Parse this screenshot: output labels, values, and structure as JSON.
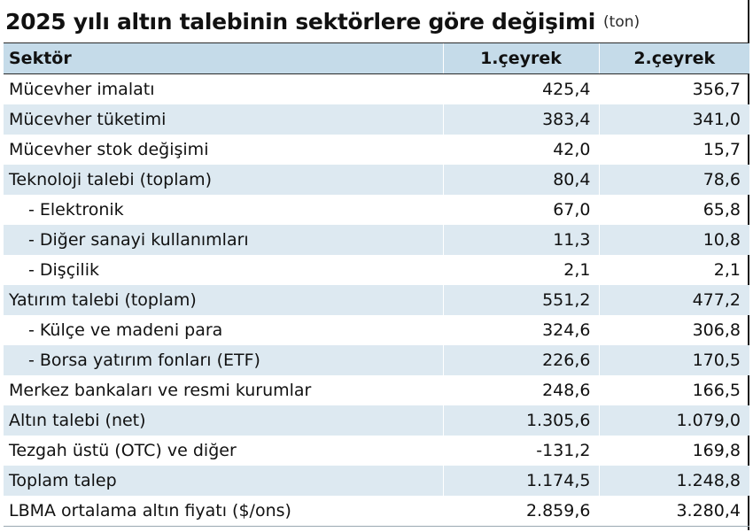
{
  "title": {
    "main": "2025 yılı altın talebinin sektörlere göre değişimi",
    "unit": "(ton)"
  },
  "table": {
    "columns": [
      "Sektör",
      "1.çeyrek",
      "2.çeyrek"
    ],
    "rows": [
      {
        "sector": "Mücevher imalatı",
        "q1": "425,4",
        "q2": "356,7"
      },
      {
        "sector": "Mücevher tüketimi",
        "q1": "383,4",
        "q2": "341,0"
      },
      {
        "sector": "Mücevher stok değişimi",
        "q1": "42,0",
        "q2": "15,7"
      },
      {
        "sector": "Teknoloji talebi (toplam)",
        "q1": "80,4",
        "q2": "78,6"
      },
      {
        "sector": "- Elektronik",
        "q1": "67,0",
        "q2": "65,8"
      },
      {
        "sector": "- Diğer sanayi kullanımları",
        "q1": "11,3",
        "q2": "10,8"
      },
      {
        "sector": "- Dişçilik",
        "q1": "2,1",
        "q2": "2,1"
      },
      {
        "sector": "Yatırım talebi (toplam)",
        "q1": "551,2",
        "q2": "477,2"
      },
      {
        "sector": "- Külçe ve madeni para",
        "q1": "324,6",
        "q2": "306,8"
      },
      {
        "sector": "- Borsa yatırım fonları (ETF)",
        "q1": "226,6",
        "q2": "170,5"
      },
      {
        "sector": "Merkez bankaları ve resmi kurumlar",
        "q1": "248,6",
        "q2": "166,5"
      },
      {
        "sector": "Altın talebi (net)",
        "q1": "1.305,6",
        "q2": "1.079,0"
      },
      {
        "sector": "Tezgah üstü (OTC) ve diğer",
        "q1": "-131,2",
        "q2": "169,8"
      },
      {
        "sector": "Toplam talep",
        "q1": "1.174,5",
        "q2": "1.248,8"
      },
      {
        "sector": "LBMA ortalama altın fiyatı ($/ons)",
        "q1": "2.859,6",
        "q2": "3.280,4"
      }
    ]
  },
  "colors": {
    "header_bg": "#c5dbe9",
    "stripe_bg": "#dde9f1",
    "text": "#111111"
  }
}
